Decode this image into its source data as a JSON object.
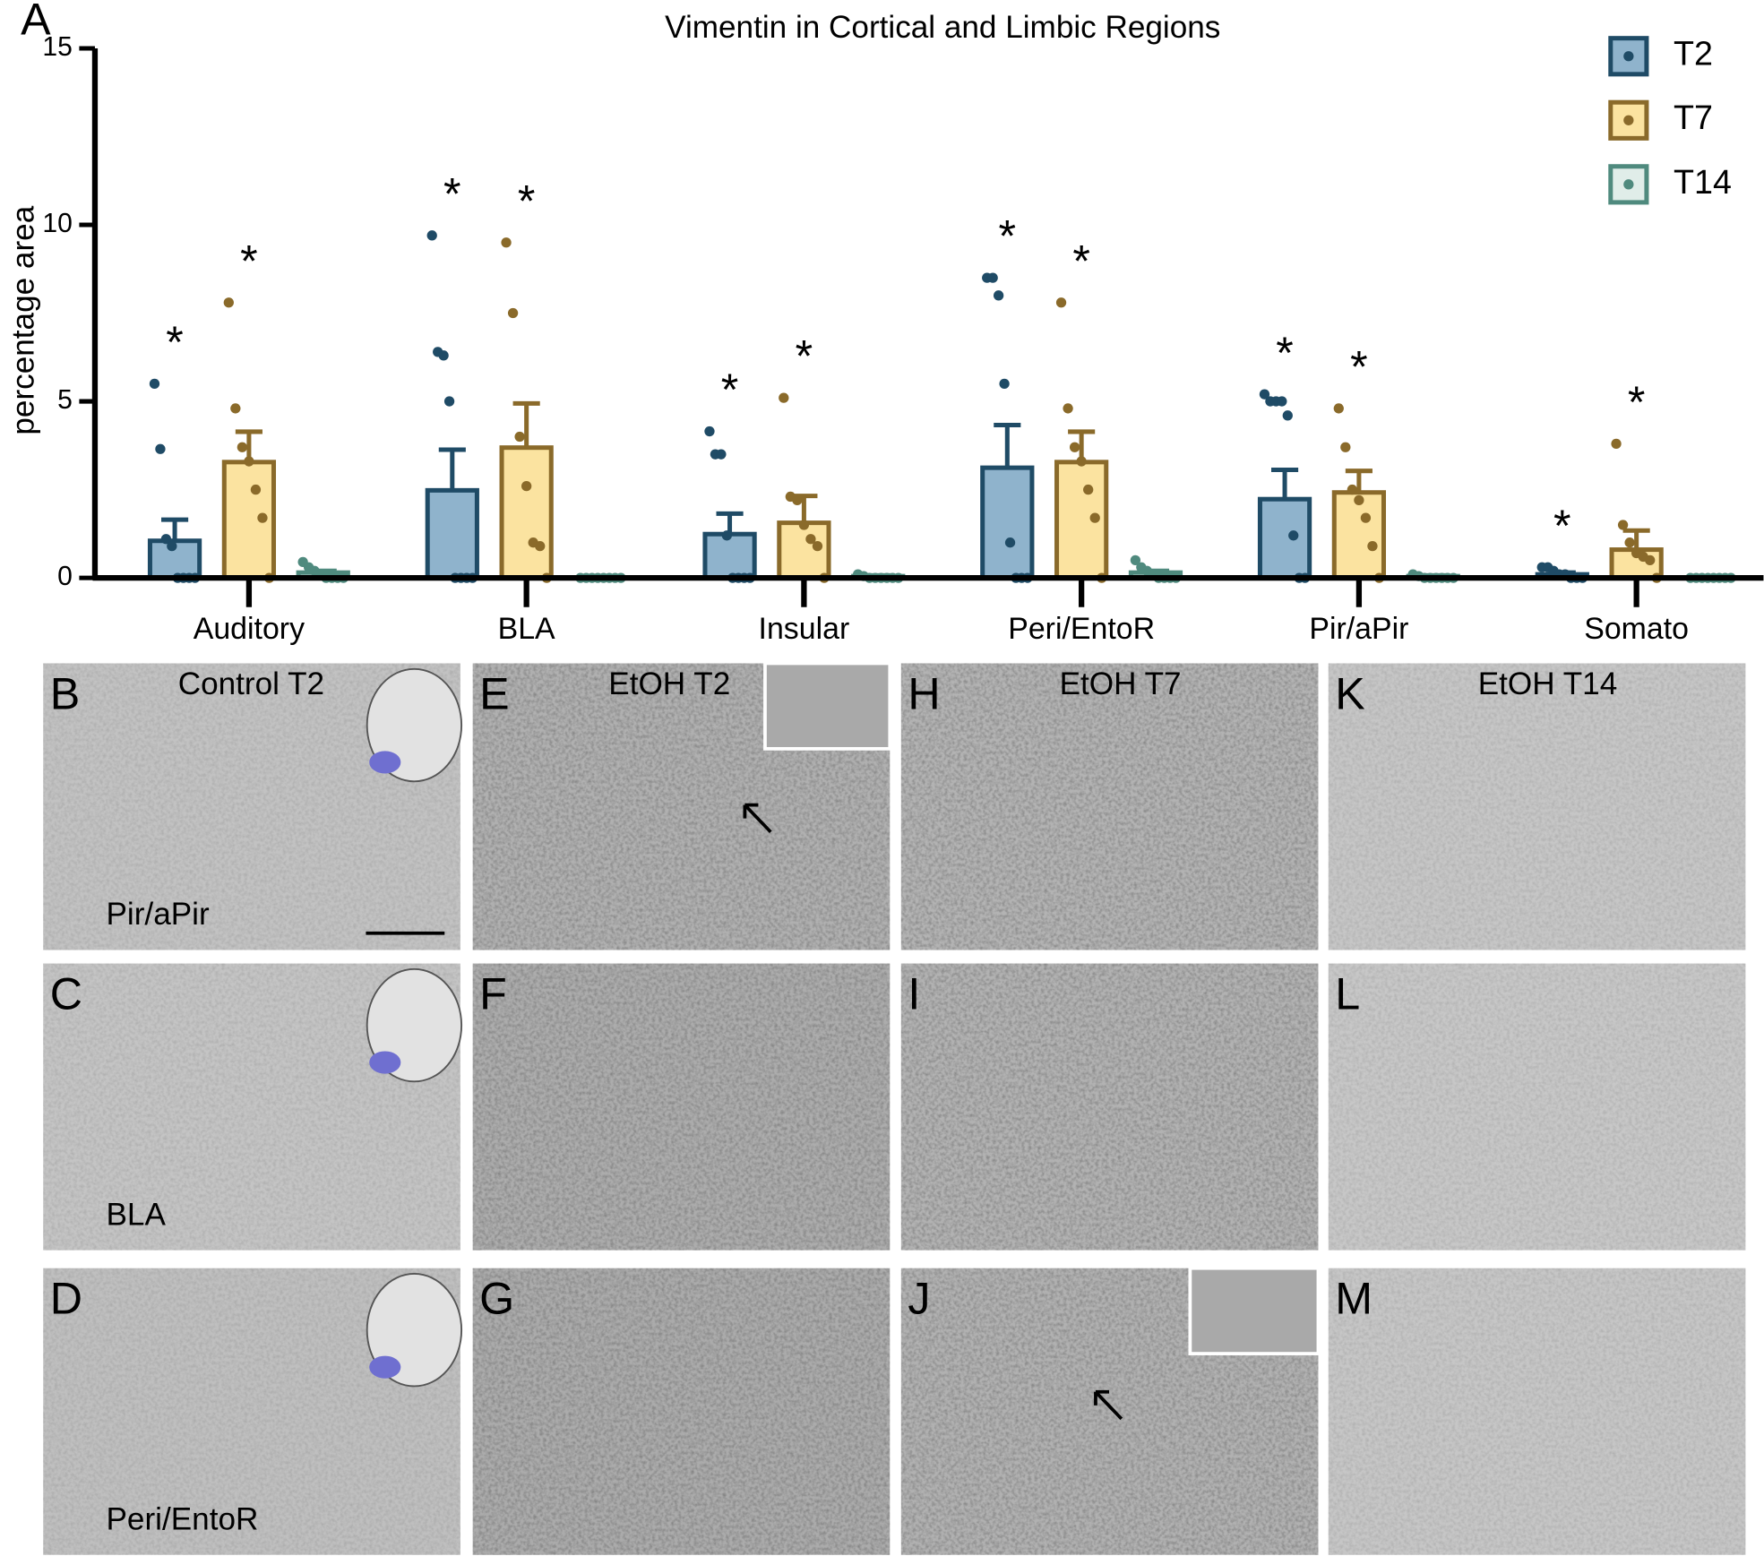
{
  "chart_data": {
    "type": "bar",
    "panel_label": "A",
    "title": "Vimentin in Cortical and Limbic Regions",
    "y_label": "percentage area",
    "categories": [
      "Auditory",
      "BLA",
      "Insular",
      "Peri/EntoR",
      "Pir/aPir",
      "Somato"
    ],
    "ylim": [
      0,
      15
    ],
    "yticks": [
      0,
      5,
      10,
      15
    ],
    "legend": "top-right",
    "series": [
      {
        "name": "T2",
        "color": "#8fb3cc",
        "edge_color": "#1f4b66",
        "values": [
          1.05,
          2.48,
          1.24,
          3.12,
          2.23,
          0.1
        ],
        "errors": [
          0.6,
          1.15,
          0.58,
          1.21,
          0.83,
          0.05
        ],
        "points": [
          [
            5.5,
            3.65,
            1.1,
            0.9,
            0,
            0,
            0,
            0
          ],
          [
            9.7,
            6.4,
            6.3,
            5.0,
            0,
            0,
            0,
            0
          ],
          [
            4.15,
            3.5,
            3.5,
            1.2,
            0,
            0,
            0,
            0
          ],
          [
            8.5,
            8.5,
            8.0,
            5.5,
            1.0,
            0,
            0,
            0
          ],
          [
            5.2,
            5.0,
            5.0,
            5.0,
            4.6,
            1.2,
            0,
            0
          ],
          [
            0.3,
            0.3,
            0.2,
            0.1,
            0.1,
            0,
            0,
            0
          ]
        ],
        "marks": [
          "*",
          "*",
          "*",
          "*",
          "*",
          "*"
        ]
      },
      {
        "name": "T7",
        "color": "#fbe3a0",
        "edge_color": "#8a6a2a",
        "values": [
          3.28,
          3.69,
          1.56,
          3.28,
          2.42,
          0.8
        ],
        "errors": [
          0.86,
          1.25,
          0.76,
          0.86,
          0.61,
          0.54
        ],
        "points": [
          [
            7.8,
            4.8,
            3.7,
            3.3,
            2.5,
            1.7,
            0
          ],
          [
            9.5,
            7.5,
            4.0,
            2.6,
            1.0,
            0.9,
            0
          ],
          [
            5.1,
            2.3,
            2.2,
            1.5,
            1.1,
            0.9,
            0
          ],
          [
            7.8,
            4.8,
            3.7,
            3.3,
            2.5,
            1.7,
            0
          ],
          [
            4.8,
            3.7,
            2.5,
            2.2,
            1.7,
            0.9,
            0
          ],
          [
            3.8,
            1.5,
            1.0,
            0.7,
            0.6,
            0.5,
            0
          ]
        ],
        "marks": [
          "*",
          "*",
          "*",
          "*",
          "*",
          "*"
        ]
      },
      {
        "name": "T14",
        "color": "#e0ede9",
        "edge_color": "#4f8a7e",
        "values": [
          0.15,
          0,
          0.05,
          0.15,
          0.05,
          0
        ],
        "errors": [
          0.05,
          0,
          0.02,
          0.05,
          0.02,
          0
        ],
        "points": [
          [
            0.45,
            0.3,
            0.2,
            0.1,
            0,
            0,
            0,
            0
          ],
          [
            0,
            0,
            0,
            0,
            0,
            0,
            0,
            0
          ],
          [
            0.1,
            0.05,
            0,
            0,
            0,
            0,
            0,
            0
          ],
          [
            0.5,
            0.3,
            0.2,
            0.1,
            0,
            0,
            0,
            0
          ],
          [
            0.1,
            0.05,
            0,
            0,
            0,
            0,
            0,
            0
          ],
          [
            0,
            0,
            0,
            0,
            0,
            0,
            0,
            0
          ]
        ]
      }
    ]
  },
  "panels": {
    "column_titles": [
      "Control T2",
      "EtOH T2",
      "EtOH T7",
      "EtOH T14"
    ],
    "row_labels": [
      "Pir/aPir",
      "BLA",
      "Peri/EntoR"
    ],
    "letters": [
      [
        "B",
        "E",
        "H",
        "K"
      ],
      [
        "C",
        "F",
        "I",
        "L"
      ],
      [
        "D",
        "G",
        "J",
        "M"
      ]
    ]
  }
}
